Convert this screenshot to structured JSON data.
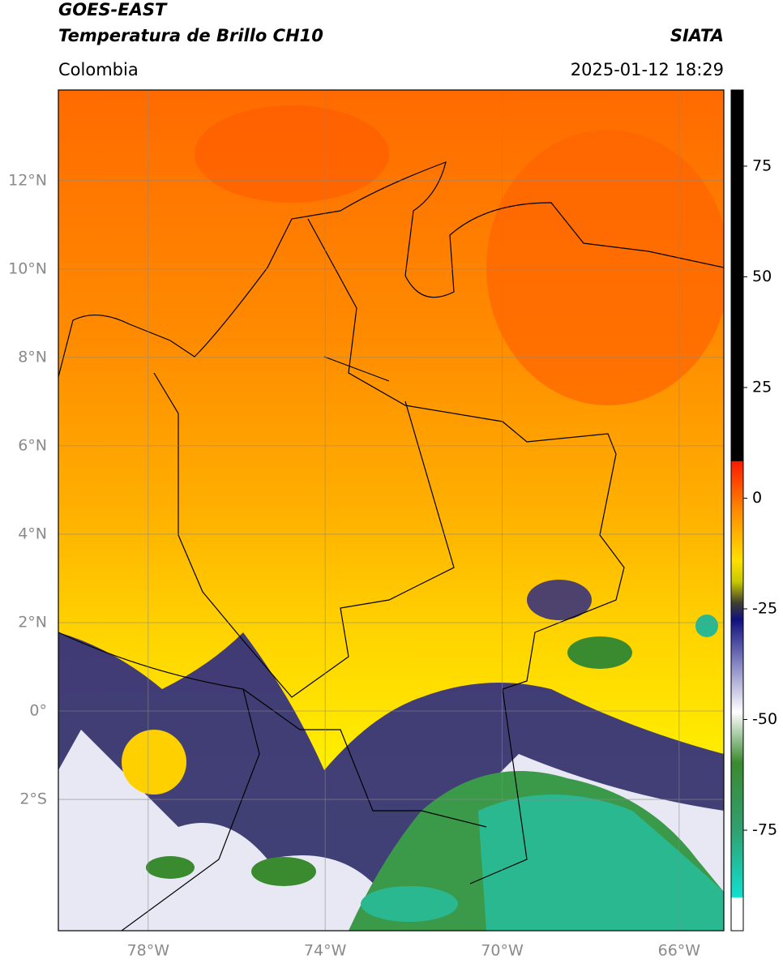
{
  "header": {
    "title": "GOES-EAST",
    "subtitle": "Temperatura de Brillo CH10",
    "region": "Colombia",
    "source": "SIATA",
    "datetime": "2025-01-12 18:29"
  },
  "map": {
    "ylim": [
      -4.97,
      14.05
    ],
    "xlim": [
      -80.03,
      -64.99
    ],
    "yticks": [
      {
        "value": 12,
        "label": "12°N"
      },
      {
        "value": 10,
        "label": "10°N"
      },
      {
        "value": 8,
        "label": "8°N"
      },
      {
        "value": 6,
        "label": "6°N"
      },
      {
        "value": 4,
        "label": "4°N"
      },
      {
        "value": 2,
        "label": "2°N"
      },
      {
        "value": 0,
        "label": "0°"
      },
      {
        "value": -2,
        "label": "2°S"
      }
    ],
    "xticks": [
      {
        "value": -78,
        "label": "78°W"
      },
      {
        "value": -74,
        "label": "74°W"
      },
      {
        "value": -70,
        "label": "70°W"
      },
      {
        "value": -66,
        "label": "66°W"
      }
    ]
  },
  "colorbar": {
    "lim": [
      -97.7,
      92.2
    ],
    "ticks": [
      75,
      50,
      25,
      0,
      -25,
      -50,
      -75
    ]
  }
}
